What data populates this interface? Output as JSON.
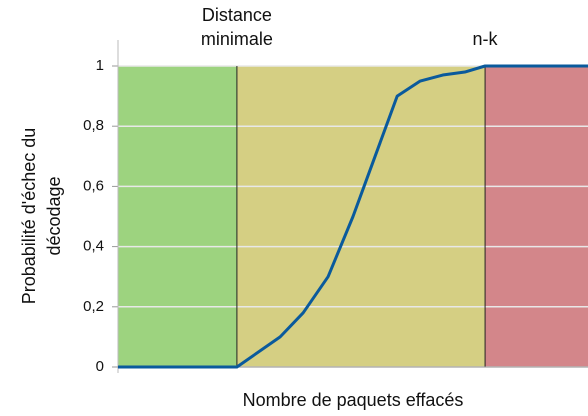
{
  "chart_data": {
    "type": "line",
    "xlabel": "Nombre de paquets effacés",
    "ylabel": [
      "Probabilité d'échec du",
      "décodage"
    ],
    "x": [
      0,
      25.3,
      34.5,
      39.4,
      44.7,
      50,
      54.7,
      59.4,
      64.3,
      69.1,
      73.8,
      78.1,
      100
    ],
    "series": [
      {
        "color": "#0a5a9c",
        "values": [
          0,
          0,
          0.1,
          0.18,
          0.3,
          0.5,
          0.7,
          0.9,
          0.95,
          0.97,
          0.98,
          1,
          1
        ]
      }
    ],
    "xlim": [
      0,
      100
    ],
    "ylim": [
      0,
      1
    ],
    "yticks": [
      0,
      {
        "value": 0.2,
        "label": "0,2"
      },
      {
        "value": 0.4,
        "label": "0,4"
      },
      {
        "value": 0.6,
        "label": "0,6"
      },
      {
        "value": 0.8,
        "label": "0,8"
      },
      1
    ],
    "grid": true,
    "regions": [
      {
        "from": 0,
        "to": 25.3,
        "color": "#9dd37f"
      },
      {
        "from": 25.3,
        "to": 78.1,
        "color": "#d5cf83"
      },
      {
        "from": 78.1,
        "to": 100,
        "color": "#d3868a"
      }
    ],
    "annotations": [
      {
        "x": 25.3,
        "text": [
          "Distance",
          "minimale"
        ]
      },
      {
        "x": 78.1,
        "text": [
          "n-k"
        ]
      }
    ]
  }
}
